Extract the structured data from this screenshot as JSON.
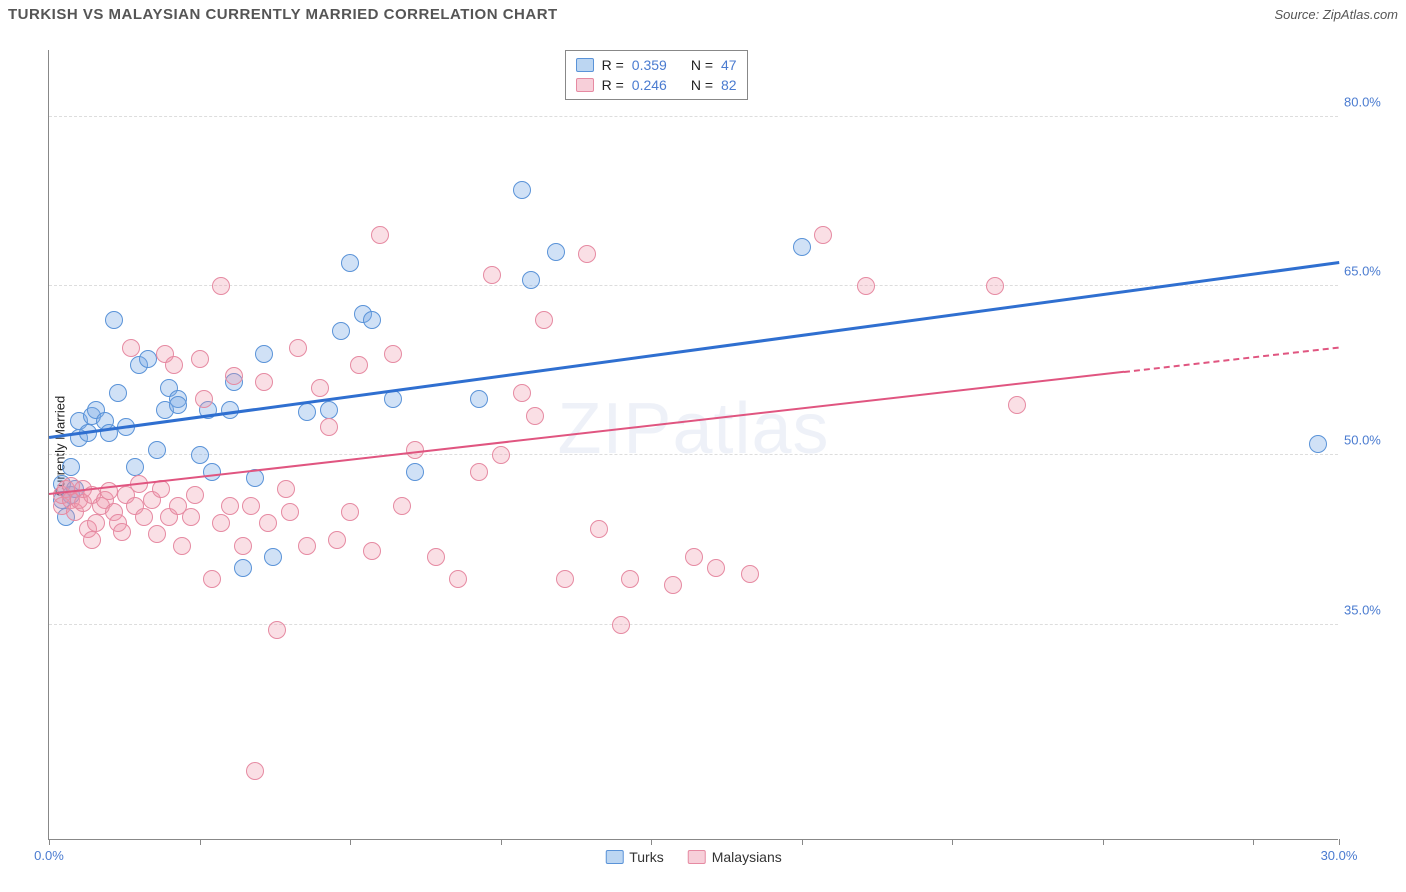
{
  "title": "TURKISH VS MALAYSIAN CURRENTLY MARRIED CORRELATION CHART",
  "source": "Source: ZipAtlas.com",
  "ylabel": "Currently Married",
  "watermark_bold": "ZIP",
  "watermark_thin": "atlas",
  "chart": {
    "type": "scatter",
    "background_color": "#ffffff",
    "grid_color": "#dddddd",
    "axis_color": "#888888",
    "xlim": [
      0,
      30
    ],
    "ylim": [
      16,
      86
    ],
    "xticks": [
      0,
      3.5,
      7,
      10.5,
      14,
      17.5,
      21,
      24.5,
      28,
      30
    ],
    "xtick_labels": {
      "0": "0.0%",
      "30": "30.0%"
    },
    "yticks": [
      35,
      50,
      65,
      80
    ],
    "ytick_labels": {
      "35": "35.0%",
      "50": "50.0%",
      "65": "65.0%",
      "80": "80.0%"
    },
    "label_fontsize": 13,
    "label_color": "#4a7bd0",
    "point_radius": 9,
    "point_stroke_width": 1.2,
    "series": [
      {
        "name": "Turks",
        "fill_color": "rgba(120,170,230,0.35)",
        "stroke_color": "#5a93d8",
        "swatch_fill": "#bcd6f2",
        "swatch_stroke": "#5a93d8",
        "R": "0.359",
        "N": "47",
        "trend": {
          "x1": 0,
          "y1": 51.5,
          "x2": 30,
          "y2": 67,
          "color": "#2f6fd0",
          "width": 2.5,
          "dash_from_x": 30
        },
        "points": [
          [
            0.3,
            47.5
          ],
          [
            0.3,
            46
          ],
          [
            0.4,
            44.5
          ],
          [
            0.5,
            46.5
          ],
          [
            0.5,
            49
          ],
          [
            0.6,
            47
          ],
          [
            0.7,
            51.5
          ],
          [
            0.7,
            53
          ],
          [
            0.9,
            52
          ],
          [
            1.0,
            53.5
          ],
          [
            1.1,
            54
          ],
          [
            1.3,
            53
          ],
          [
            1.4,
            52
          ],
          [
            1.5,
            62
          ],
          [
            1.6,
            55.5
          ],
          [
            1.8,
            52.5
          ],
          [
            2.0,
            49
          ],
          [
            2.1,
            58
          ],
          [
            2.3,
            58.5
          ],
          [
            2.5,
            50.5
          ],
          [
            2.7,
            54
          ],
          [
            2.8,
            56
          ],
          [
            3.0,
            55
          ],
          [
            3.0,
            54.5
          ],
          [
            3.5,
            50
          ],
          [
            3.7,
            54
          ],
          [
            3.8,
            48.5
          ],
          [
            4.2,
            54
          ],
          [
            4.3,
            56.5
          ],
          [
            4.5,
            40
          ],
          [
            4.8,
            48
          ],
          [
            5.0,
            59
          ],
          [
            5.2,
            41
          ],
          [
            6.0,
            53.8
          ],
          [
            6.5,
            54
          ],
          [
            6.8,
            61
          ],
          [
            7.0,
            67
          ],
          [
            7.3,
            62.5
          ],
          [
            7.5,
            62
          ],
          [
            8.0,
            55
          ],
          [
            8.5,
            48.5
          ],
          [
            10.0,
            55
          ],
          [
            11.0,
            73.5
          ],
          [
            11.2,
            65.5
          ],
          [
            11.8,
            68
          ],
          [
            17.5,
            68.5
          ],
          [
            29.5,
            51
          ]
        ]
      },
      {
        "name": "Malaysians",
        "fill_color": "rgba(240,150,170,0.30)",
        "stroke_color": "#e68aa2",
        "swatch_fill": "#f7cfd9",
        "swatch_stroke": "#e68aa2",
        "R": "0.246",
        "N": "82",
        "trend": {
          "x1": 0,
          "y1": 46.5,
          "x2": 30,
          "y2": 59.5,
          "color": "#e05580",
          "width": 2.2,
          "dash_from_x": 25
        },
        "points": [
          [
            0.3,
            45.5
          ],
          [
            0.3,
            46.5
          ],
          [
            0.4,
            47
          ],
          [
            0.5,
            46
          ],
          [
            0.5,
            47.3
          ],
          [
            0.6,
            45
          ],
          [
            0.7,
            46
          ],
          [
            0.8,
            45.8
          ],
          [
            0.8,
            47
          ],
          [
            0.9,
            43.5
          ],
          [
            1.0,
            46.5
          ],
          [
            1.0,
            42.5
          ],
          [
            1.1,
            44
          ],
          [
            1.2,
            45.5
          ],
          [
            1.3,
            46
          ],
          [
            1.4,
            46.8
          ],
          [
            1.5,
            45
          ],
          [
            1.6,
            44
          ],
          [
            1.7,
            43.2
          ],
          [
            1.8,
            46.5
          ],
          [
            1.9,
            59.5
          ],
          [
            2.0,
            45.5
          ],
          [
            2.1,
            47.5
          ],
          [
            2.2,
            44.5
          ],
          [
            2.4,
            46
          ],
          [
            2.5,
            43
          ],
          [
            2.6,
            47
          ],
          [
            2.7,
            59
          ],
          [
            2.8,
            44.5
          ],
          [
            2.9,
            58
          ],
          [
            3.0,
            45.5
          ],
          [
            3.1,
            42
          ],
          [
            3.3,
            44.5
          ],
          [
            3.4,
            46.5
          ],
          [
            3.5,
            58.5
          ],
          [
            3.6,
            55
          ],
          [
            3.8,
            39
          ],
          [
            4.0,
            44
          ],
          [
            4.0,
            65
          ],
          [
            4.2,
            45.5
          ],
          [
            4.3,
            57
          ],
          [
            4.5,
            42
          ],
          [
            4.7,
            45.5
          ],
          [
            4.8,
            22
          ],
          [
            5.0,
            56.5
          ],
          [
            5.1,
            44
          ],
          [
            5.3,
            34.5
          ],
          [
            5.5,
            47
          ],
          [
            5.6,
            45
          ],
          [
            5.8,
            59.5
          ],
          [
            6.0,
            42
          ],
          [
            6.3,
            56
          ],
          [
            6.5,
            52.5
          ],
          [
            6.7,
            42.5
          ],
          [
            7.0,
            45
          ],
          [
            7.2,
            58
          ],
          [
            7.5,
            41.5
          ],
          [
            7.7,
            69.5
          ],
          [
            8.0,
            59
          ],
          [
            8.2,
            45.5
          ],
          [
            8.5,
            50.5
          ],
          [
            9.0,
            41
          ],
          [
            9.5,
            39
          ],
          [
            10.0,
            48.5
          ],
          [
            10.3,
            66
          ],
          [
            10.5,
            50
          ],
          [
            11.0,
            55.5
          ],
          [
            11.3,
            53.5
          ],
          [
            11.5,
            62
          ],
          [
            12.0,
            39
          ],
          [
            12.5,
            67.8
          ],
          [
            12.8,
            43.5
          ],
          [
            13.3,
            35
          ],
          [
            13.5,
            39
          ],
          [
            14.5,
            38.5
          ],
          [
            15.0,
            41
          ],
          [
            15.5,
            40
          ],
          [
            16.3,
            39.5
          ],
          [
            18.0,
            69.5
          ],
          [
            19.0,
            65
          ],
          [
            22.0,
            65
          ],
          [
            22.5,
            54.5
          ]
        ]
      }
    ]
  },
  "stats_labels": {
    "R": "R =",
    "N": "N ="
  }
}
